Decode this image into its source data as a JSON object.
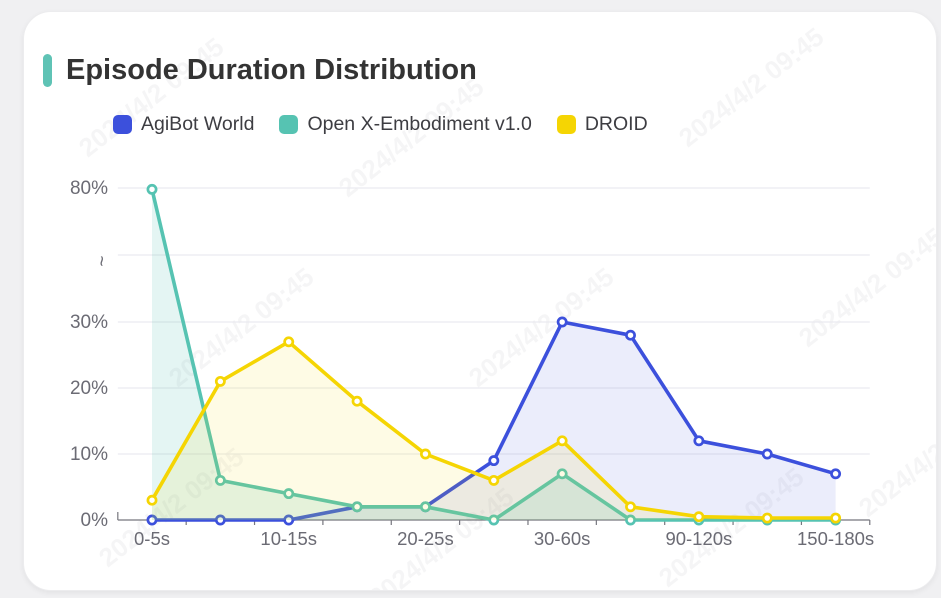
{
  "page": {
    "background": "#f0f0f2",
    "card_background": "#ffffff"
  },
  "header": {
    "title": "Episode Duration Distribution",
    "accent_color": "#5fc3b5"
  },
  "watermark": {
    "text": "2024/4/2 09:45"
  },
  "chart_data": {
    "type": "line",
    "title": "Episode Duration Distribution",
    "categories": [
      "0-5s",
      "",
      "10-15s",
      "",
      "20-25s",
      "",
      "30-60s",
      "",
      "90-120s",
      "",
      "150-180s"
    ],
    "x_label_indices": [
      0,
      2,
      4,
      6,
      8,
      10
    ],
    "series": [
      {
        "name": "AgiBot World",
        "color": "#3c50dc",
        "fill": "rgba(61,80,220,0.10)",
        "values": [
          0,
          0,
          0,
          2,
          2,
          9,
          30,
          28,
          12,
          10,
          7
        ]
      },
      {
        "name": "Open X-Embodiment v1.0",
        "color": "#56c3b2",
        "fill": "rgba(86,195,178,0.16)",
        "values": [
          79.5,
          6,
          4,
          2,
          2,
          0,
          7,
          0,
          0,
          0,
          0
        ]
      },
      {
        "name": "DROID",
        "color": "#f5d503",
        "fill": "rgba(245,213,3,0.10)",
        "values": [
          3,
          21,
          27,
          18,
          10,
          6,
          12,
          2,
          0.5,
          0.3,
          0.3
        ]
      }
    ],
    "y_ticks": [
      {
        "label": "0%",
        "value": 0
      },
      {
        "label": "10%",
        "value": 10
      },
      {
        "label": "20%",
        "value": 20
      },
      {
        "label": "30%",
        "value": 30
      },
      {
        "label": "~",
        "value": null,
        "break": true
      },
      {
        "label": "80%",
        "value": 80
      }
    ],
    "axis_break": {
      "between": [
        30,
        80
      ]
    },
    "ylim_low": [
      0,
      30
    ],
    "grid": true,
    "markers": true,
    "area_fill": true,
    "legend_position": "top",
    "axis_color": "#76767e",
    "grid_color": "#ebebf0",
    "tick_label_color": "#6b6b74"
  }
}
